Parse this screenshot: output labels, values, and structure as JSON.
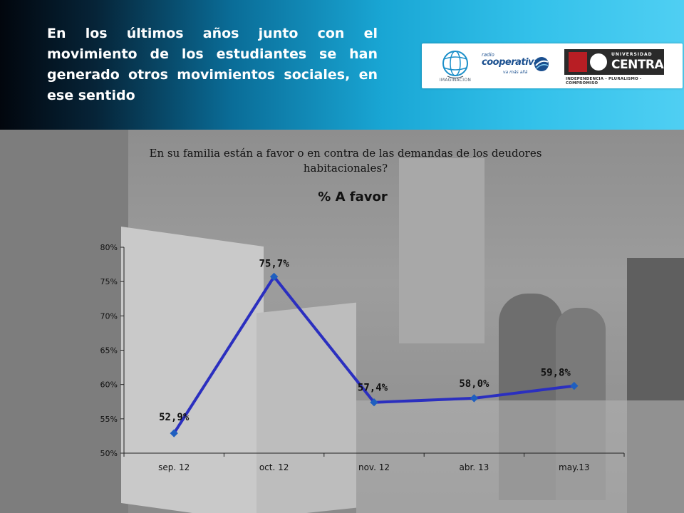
{
  "header": {
    "title": "En los últimos años junto con el movimiento de los estudiantes se han generado otros movimientos sociales, en ese sentido"
  },
  "logos": {
    "imaginacion": "IMAGINACION",
    "cooperativa_radio": "radio",
    "cooperativa_name": "cooperativa",
    "cooperativa_tag": "va más allá",
    "central_university": "UNIVERSIDAD",
    "central_name": "CENTRAL",
    "central_motto": "INDEPENDENCIA - PLURALISMO - COMPROMISO"
  },
  "colors": {
    "header_start": "#02060d",
    "header_end": "#4fcff3",
    "series_line": "#2b2fbf",
    "marker": "#1f5fbf"
  },
  "chart_data": {
    "type": "line",
    "title": "En su familia están a favor o en contra de las demandas de los deudores habitacionales?",
    "subtitle": "% A favor",
    "categories": [
      "sep. 12",
      "oct. 12",
      "nov. 12",
      "abr. 13",
      "may.13"
    ],
    "series": [
      {
        "name": "",
        "values": [
          52.9,
          75.7,
          57.4,
          58.0,
          59.8
        ],
        "labels": [
          "52,9%",
          "75,7%",
          "57,4%",
          "58,0%",
          "59,8%"
        ]
      }
    ],
    "ylim": [
      50,
      80
    ],
    "yticks": [
      50,
      55,
      60,
      65,
      70,
      75,
      80
    ],
    "ytick_labels": [
      "50%",
      "55%",
      "60%",
      "65%",
      "70%",
      "75%",
      "80%"
    ],
    "xlabel": "",
    "ylabel": "",
    "grid": false,
    "legend": "none"
  }
}
